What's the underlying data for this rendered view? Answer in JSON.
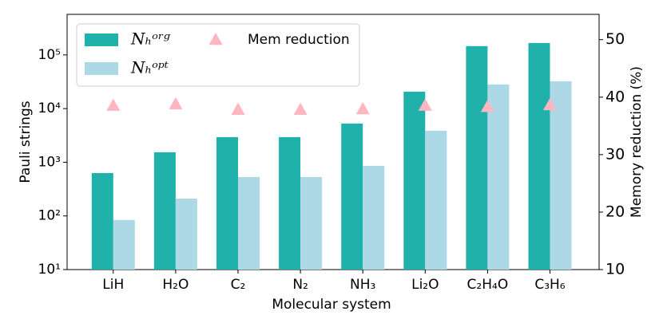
{
  "chart_data": {
    "type": "bar",
    "categories": [
      "LiH",
      "H₂O",
      "C₂",
      "N₂",
      "NH₃",
      "Li₂O",
      "C₂H₄O",
      "C₃H₆"
    ],
    "series": [
      {
        "name": "Nₕᵒʳᵍ",
        "color": "#20b2aa",
        "values": [
          630,
          1535,
          2940,
          2940,
          5270,
          20700,
          146000,
          167000
        ]
      },
      {
        "name": "Nₕᵒᵖᵗ",
        "color": "#add8e6",
        "values": [
          84,
          210,
          530,
          530,
          857,
          3870,
          28200,
          32300
        ]
      },
      {
        "name": "Mem reduction",
        "color": "#ffb6c1",
        "type": "scatter",
        "marker": "triangle",
        "axis": "y2",
        "values": [
          38.5,
          38.75,
          37.8,
          37.8,
          37.9,
          38.5,
          38.3,
          38.6
        ]
      }
    ],
    "xlabel": "Molecular system",
    "ylabel": "Pauli strings",
    "y2label": "Memory reduction (%)",
    "yscale": "log",
    "ylim": [
      10,
      570000
    ],
    "yticks": [
      {
        "value": 10,
        "label": "10¹"
      },
      {
        "value": 100,
        "label": "10²"
      },
      {
        "value": 1000,
        "label": "10³"
      },
      {
        "value": 10000,
        "label": "10⁴"
      },
      {
        "value": 100000,
        "label": "10⁵"
      }
    ],
    "y2lim": [
      10,
      54.4
    ],
    "y2ticks": [
      10,
      20,
      30,
      40,
      50
    ],
    "legend": "upper left",
    "grid": false
  }
}
